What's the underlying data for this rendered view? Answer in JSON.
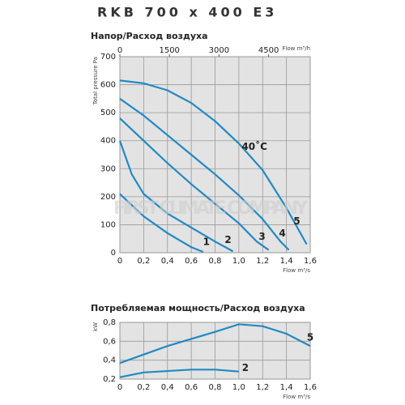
{
  "title": "RKB 700 x 400 E3",
  "watermark": "FIRST CLIMATE COMPANY",
  "chart_data": [
    {
      "type": "line",
      "title": "Напор/Расход воздуха",
      "ylabel": "Total pressure Pa",
      "xlabel": "Flow m³/s",
      "x2label": "Flow m³/h",
      "xlim": [
        0,
        1.6
      ],
      "xticks": [
        0,
        {
          "value": 0.2,
          "label": "0,2"
        },
        {
          "value": 0.4,
          "label": "0,4"
        },
        {
          "value": 0.6,
          "label": "0,6"
        },
        {
          "value": 0.8,
          "label": "0,8"
        },
        {
          "value": 1.0,
          "label": "1,0"
        },
        {
          "value": 1.2,
          "label": "1,2"
        },
        {
          "value": 1.4,
          "label": "1,4"
        },
        {
          "value": 1.6,
          "label": "1,6"
        }
      ],
      "x2lim": [
        0,
        5760
      ],
      "x2ticks": [
        0,
        1500,
        3000,
        4500
      ],
      "ylim": [
        0,
        700
      ],
      "yticks": [
        0,
        100,
        200,
        300,
        400,
        500,
        600,
        700
      ],
      "grid": true,
      "annotations": [
        "40˚C"
      ],
      "series": [
        {
          "name": "1",
          "color": "#2289c4",
          "x": [
            0,
            0.2,
            0.4,
            0.6,
            0.7
          ],
          "values": [
            210,
            130,
            70,
            20,
            3
          ]
        },
        {
          "name": "2",
          "color": "#2289c4",
          "x": [
            0,
            0.1,
            0.2,
            0.4,
            0.6,
            0.8,
            0.95
          ],
          "values": [
            400,
            280,
            210,
            140,
            90,
            40,
            5
          ]
        },
        {
          "name": "3",
          "color": "#2289c4",
          "x": [
            0,
            0.2,
            0.4,
            0.6,
            0.8,
            1.0,
            1.15,
            1.25
          ],
          "values": [
            480,
            400,
            320,
            245,
            175,
            105,
            40,
            10
          ]
        },
        {
          "name": "4",
          "color": "#2289c4",
          "x": [
            0,
            0.2,
            0.4,
            0.6,
            0.8,
            1.0,
            1.2,
            1.35,
            1.42
          ],
          "values": [
            550,
            490,
            420,
            350,
            280,
            205,
            120,
            40,
            10
          ]
        },
        {
          "name": "5",
          "color": "#2289c4",
          "x": [
            0,
            0.2,
            0.4,
            0.6,
            0.8,
            1.0,
            1.2,
            1.4,
            1.57
          ],
          "values": [
            615,
            605,
            580,
            535,
            470,
            390,
            295,
            160,
            30
          ]
        }
      ]
    },
    {
      "type": "line",
      "title": "Потребляемая мощность/Расход воздуха",
      "ylabel": "kW",
      "xlabel": "Flow m³/s",
      "xlim": [
        0,
        1.6
      ],
      "xticks": [
        0,
        {
          "value": 0.2,
          "label": "0,2"
        },
        {
          "value": 0.4,
          "label": "0,4"
        },
        {
          "value": 0.6,
          "label": "0,6"
        },
        {
          "value": 0.8,
          "label": "0,8"
        },
        {
          "value": 1.0,
          "label": "1,0"
        },
        {
          "value": 1.2,
          "label": "1,2"
        },
        {
          "value": 1.4,
          "label": "1,4"
        },
        {
          "value": 1.6,
          "label": "1,6"
        }
      ],
      "ylim": [
        0.2,
        0.8
      ],
      "yticks": [
        {
          "value": 0.2,
          "label": "0,2"
        },
        {
          "value": 0.4,
          "label": "0,4"
        },
        {
          "value": 0.6,
          "label": "0,6"
        },
        {
          "value": 0.8,
          "label": "0,8"
        }
      ],
      "grid": true,
      "series": [
        {
          "name": "5",
          "color": "#2289c4",
          "x": [
            0,
            0.4,
            0.8,
            1.0,
            1.2,
            1.4,
            1.6
          ],
          "values": [
            0.37,
            0.55,
            0.7,
            0.78,
            0.76,
            0.68,
            0.55
          ]
        },
        {
          "name": "2",
          "color": "#2289c4",
          "x": [
            0,
            0.2,
            0.6,
            0.8,
            1.0
          ],
          "values": [
            0.22,
            0.27,
            0.3,
            0.3,
            0.28
          ]
        }
      ]
    }
  ]
}
